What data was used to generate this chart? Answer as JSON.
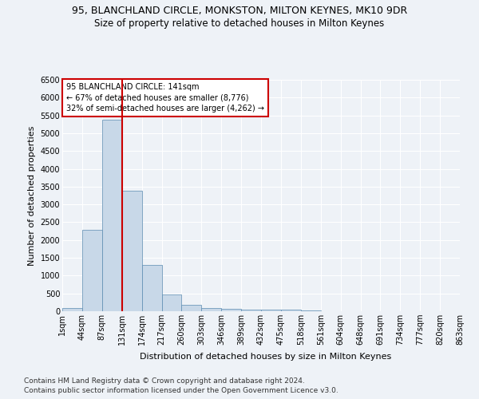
{
  "title": "95, BLANCHLAND CIRCLE, MONKSTON, MILTON KEYNES, MK10 9DR",
  "subtitle": "Size of property relative to detached houses in Milton Keynes",
  "xlabel": "Distribution of detached houses by size in Milton Keynes",
  "ylabel": "Number of detached properties",
  "footnote1": "Contains HM Land Registry data © Crown copyright and database right 2024.",
  "footnote2": "Contains public sector information licensed under the Open Government Licence v3.0.",
  "annotation_line1": "95 BLANCHLAND CIRCLE: 141sqm",
  "annotation_line2": "← 67% of detached houses are smaller (8,776)",
  "annotation_line3": "32% of semi-detached houses are larger (4,262) →",
  "bar_values": [
    80,
    2280,
    5380,
    3380,
    1300,
    480,
    185,
    100,
    70,
    50,
    40,
    40,
    20,
    10,
    5,
    5,
    5,
    3,
    3,
    3
  ],
  "bin_labels": [
    "1sqm",
    "44sqm",
    "87sqm",
    "131sqm",
    "174sqm",
    "217sqm",
    "260sqm",
    "303sqm",
    "346sqm",
    "389sqm",
    "432sqm",
    "475sqm",
    "518sqm",
    "561sqm",
    "604sqm",
    "648sqm",
    "691sqm",
    "734sqm",
    "777sqm",
    "820sqm",
    "863sqm"
  ],
  "bar_color": "#c8d8e8",
  "bar_edge_color": "#5a8ab0",
  "red_line_x": 3,
  "red_line_color": "#cc0000",
  "ylim": [
    0,
    6500
  ],
  "yticks": [
    0,
    500,
    1000,
    1500,
    2000,
    2500,
    3000,
    3500,
    4000,
    4500,
    5000,
    5500,
    6000,
    6500
  ],
  "background_color": "#eef2f7",
  "grid_color": "#ffffff",
  "title_fontsize": 9,
  "subtitle_fontsize": 8.5,
  "axis_label_fontsize": 8,
  "tick_fontsize": 7,
  "footnote_fontsize": 6.5
}
